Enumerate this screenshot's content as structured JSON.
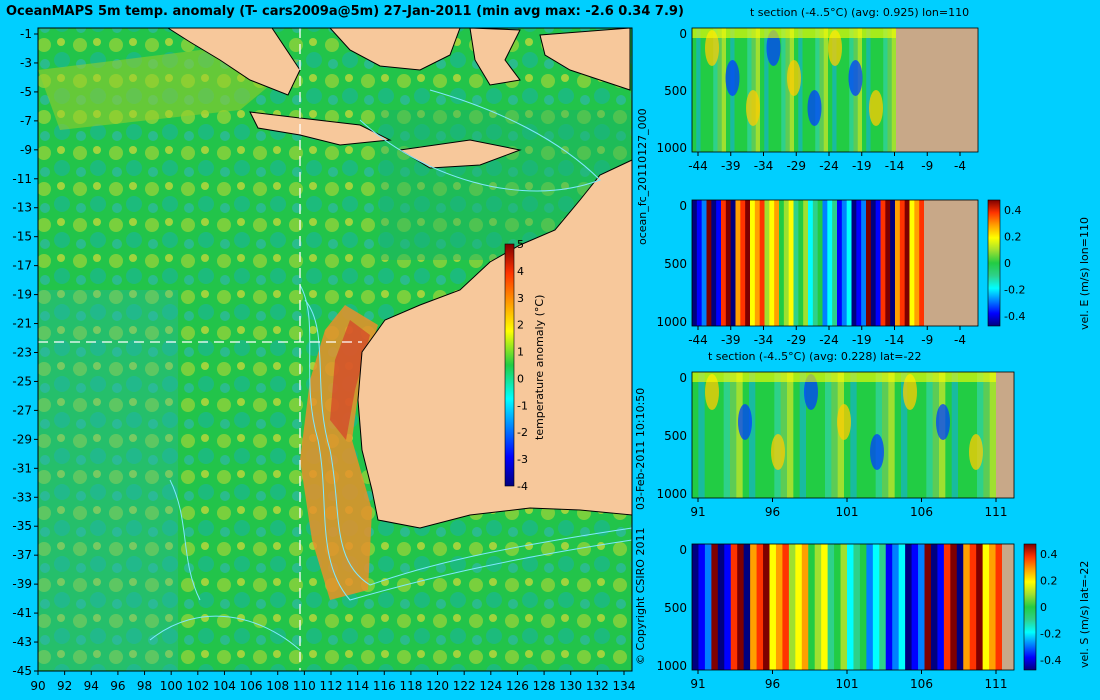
{
  "map": {
    "title": "OceanMAPS 5m temp. anomaly (T- cars2009a@5m) 27-Jan-2011 (min avg max: -2.6 0.34 7.9)",
    "lat_ticks": [
      "-1",
      "-3",
      "-5",
      "-7",
      "-9",
      "-11",
      "-13",
      "-15",
      "-17",
      "-19",
      "-21",
      "-23",
      "-25",
      "-27",
      "-29",
      "-31",
      "-33",
      "-35",
      "-37",
      "-39",
      "-41",
      "-43",
      "-45"
    ],
    "lon_ticks": [
      "90",
      "92",
      "94",
      "96",
      "98",
      "100",
      "102",
      "104",
      "106",
      "108",
      "110",
      "112",
      "114",
      "116",
      "118",
      "120",
      "122",
      "124",
      "126",
      "128",
      "130",
      "132",
      "134"
    ],
    "colorbar": {
      "label": "temperature anomaly (°C)",
      "ticks": [
        "5",
        "4",
        "3",
        "2",
        "1",
        "0",
        "-1",
        "-2",
        "-3",
        "-4"
      ]
    },
    "colors": {
      "ocean_base": "#33cc33",
      "land": "#f7c89b",
      "background": "#00cfff"
    }
  },
  "panels": [
    {
      "id": "t-lon",
      "title": "t section (-4..5°C) (avg: 0.925) lon=110",
      "y_ticks": [
        "0",
        "500",
        "1000"
      ],
      "x_ticks": [
        "-44",
        "-39",
        "-34",
        "-29",
        "-24",
        "-19",
        "-14",
        "-9",
        "-4"
      ]
    },
    {
      "id": "ve-lon",
      "title": "",
      "y_ticks": [
        "0",
        "500",
        "1000"
      ],
      "x_ticks": [
        "-44",
        "-39",
        "-34",
        "-29",
        "-24",
        "-19",
        "-14",
        "-9",
        "-4"
      ],
      "colorbar_ticks": [
        "0.4",
        "0.2",
        "0",
        "-0.2",
        "-0.4"
      ],
      "colorbar_label": "vel. E (m/s) lon=110"
    },
    {
      "id": "t-lat",
      "title": "t section (-4..5°C) (avg: 0.228) lat=-22",
      "y_ticks": [
        "0",
        "500",
        "1000"
      ],
      "x_ticks": [
        "91",
        "96",
        "101",
        "106",
        "111"
      ]
    },
    {
      "id": "vs-lat",
      "title": "",
      "y_ticks": [
        "0",
        "500",
        "1000"
      ],
      "x_ticks": [
        "91",
        "96",
        "101",
        "106",
        "111"
      ],
      "colorbar_ticks": [
        "0.4",
        "0.2",
        "0",
        "-0.2",
        "-0.4"
      ],
      "colorbar_label": "vel. S (m/s) lat=-22"
    }
  ],
  "side_labels": {
    "forecast_id": "ocean_fc_20110127_000",
    "timestamp": "03-Feb-2011 10:10:50",
    "copyright": "© Copyright CSIRO 2011"
  }
}
